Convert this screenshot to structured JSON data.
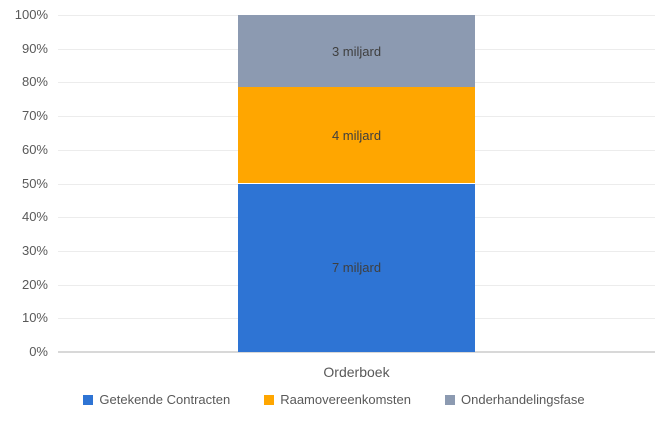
{
  "chart_data": {
    "type": "bar",
    "subtype": "stacked-100-percent",
    "title": "",
    "categories": [
      "Orderboek"
    ],
    "series": [
      {
        "name": "Getekende Contracten",
        "values": [
          7
        ],
        "data_label": "7 miljard",
        "color": "#2e74d4"
      },
      {
        "name": "Raamovereenkomsten",
        "values": [
          4
        ],
        "data_label": "4 miljard",
        "color": "#ffa600"
      },
      {
        "name": "Onderhandelingsfase",
        "values": [
          3
        ],
        "data_label": "3 miljard",
        "color": "#8c9ab1"
      }
    ],
    "xlabel": "",
    "ylabel": "",
    "ylim": [
      0,
      100
    ],
    "y_tick_labels": [
      "0%",
      "10%",
      "20%",
      "30%",
      "40%",
      "50%",
      "60%",
      "70%",
      "80%",
      "90%",
      "100%"
    ],
    "grid": "horizontal",
    "legend_position": "bottom"
  },
  "colors": {
    "grid_line": "#ececec",
    "axis_line": "#d8d8d8",
    "tick_text": "#595959",
    "data_label_text": "#3f3f3f",
    "legend_text": "#595959",
    "background": "#ffffff"
  }
}
